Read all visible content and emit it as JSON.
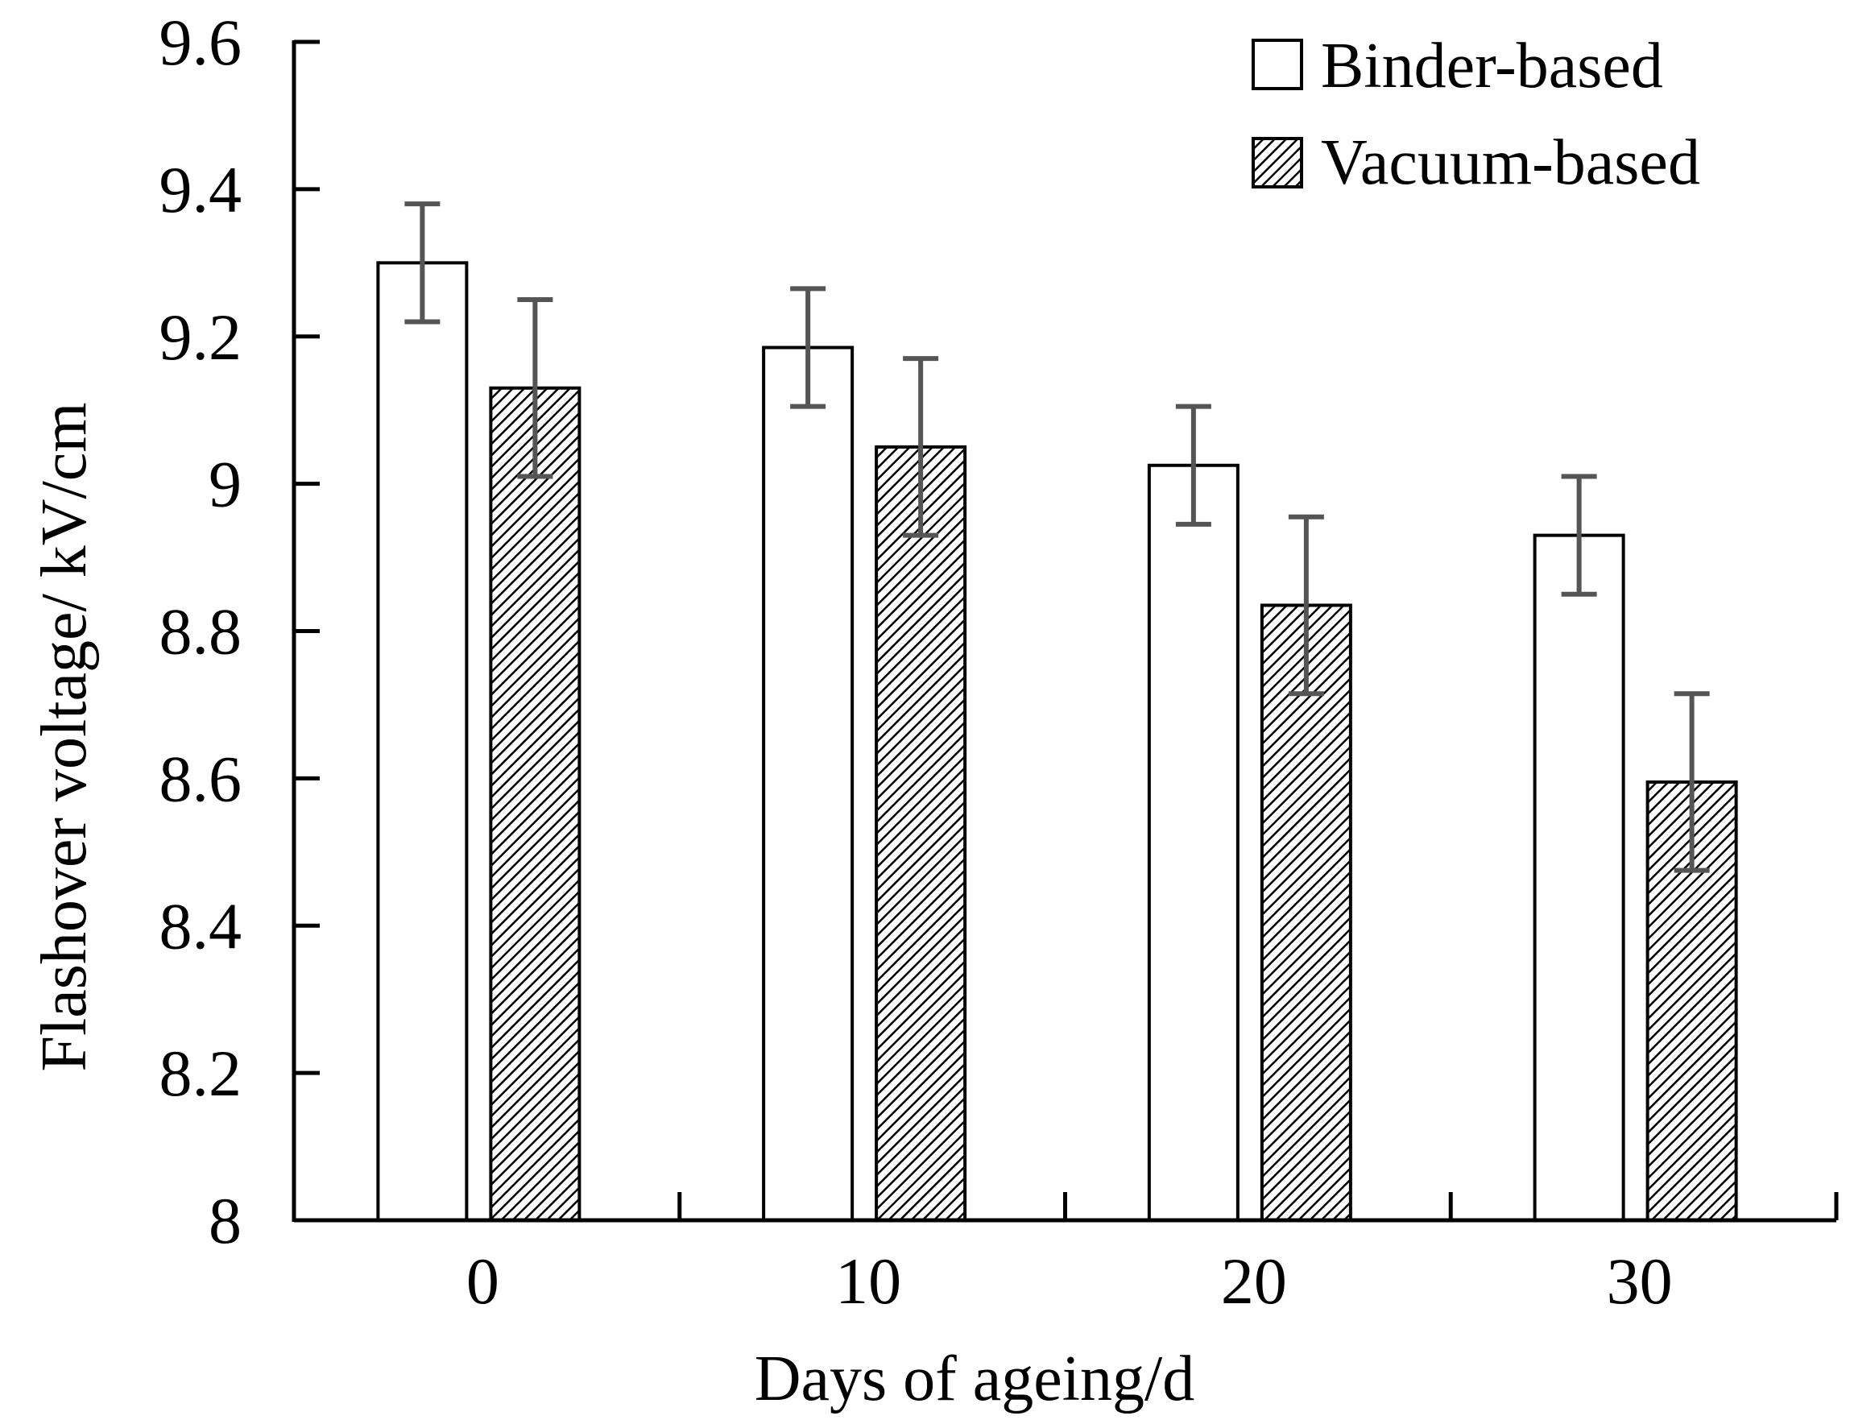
{
  "chart_data": {
    "type": "bar",
    "title": "",
    "xlabel": "Days of ageing/d",
    "ylabel": "Flashover voltage/ kV/cm",
    "categories": [
      "0",
      "10",
      "20",
      "30"
    ],
    "ylim": [
      8,
      9.6
    ],
    "yticks": [
      "8",
      "8.2",
      "8.4",
      "8.6",
      "8.8",
      "9",
      "9.2",
      "9.4",
      "9.6"
    ],
    "ytick_values": [
      8,
      8.2,
      8.4,
      8.6,
      8.8,
      9.0,
      9.2,
      9.4,
      9.6
    ],
    "grid": false,
    "legend_position": "top-right",
    "series": [
      {
        "name": "Binder-based",
        "pattern": "hollow",
        "values": [
          9.3,
          9.185,
          9.025,
          8.93
        ],
        "errors": [
          0.08,
          0.08,
          0.08,
          0.08
        ]
      },
      {
        "name": "Vacuum-based",
        "pattern": "hatched",
        "values": [
          9.13,
          9.05,
          8.835,
          8.595
        ],
        "errors": [
          0.12,
          0.12,
          0.12,
          0.12
        ]
      }
    ]
  }
}
